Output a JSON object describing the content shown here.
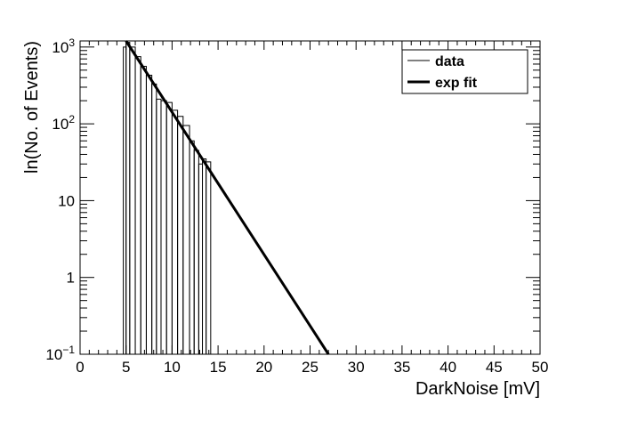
{
  "chart_data": {
    "type": "line",
    "xlabel": "DarkNoise [mV]",
    "ylabel": "ln(No. of Events)",
    "xlim": [
      0,
      50
    ],
    "ylim": [
      0.1,
      1200
    ],
    "y_scale": "log",
    "grid": false,
    "legend_position": "top-right",
    "x_ticks": [
      0,
      5,
      10,
      15,
      20,
      25,
      30,
      35,
      40,
      45,
      50
    ],
    "x_tick_labels": [
      "0",
      "5",
      "10",
      "15",
      "20",
      "25",
      "30",
      "35",
      "40",
      "45",
      "50"
    ],
    "y_ticks": [
      0.1,
      1,
      10,
      100,
      1000
    ],
    "y_tick_labels": [
      {
        "base": "10",
        "exp": "−1"
      },
      {
        "base": "1",
        "exp": ""
      },
      {
        "base": "10",
        "exp": ""
      },
      {
        "base": "10",
        "exp": "2"
      },
      {
        "base": "10",
        "exp": "3"
      }
    ],
    "series": [
      {
        "name": "data",
        "style": "histogram",
        "line_width": "thin",
        "bins": [
          {
            "x0": 4.7,
            "x1": 5.0,
            "y": 1000
          },
          {
            "x0": 5.0,
            "x1": 5.4,
            "y": 1150
          },
          {
            "x0": 5.4,
            "x1": 6.0,
            "y": 1000
          },
          {
            "x0": 6.0,
            "x1": 6.6,
            "y": 750
          },
          {
            "x0": 6.6,
            "x1": 7.2,
            "y": 560
          },
          {
            "x0": 7.2,
            "x1": 7.8,
            "y": 430
          },
          {
            "x0": 7.8,
            "x1": 8.3,
            "y": 330
          },
          {
            "x0": 8.3,
            "x1": 8.8,
            "y": 210
          },
          {
            "x0": 8.8,
            "x1": 9.4,
            "y": 200
          },
          {
            "x0": 9.4,
            "x1": 10.0,
            "y": 190
          },
          {
            "x0": 10.0,
            "x1": 10.6,
            "y": 150
          },
          {
            "x0": 10.6,
            "x1": 11.2,
            "y": 125
          },
          {
            "x0": 11.2,
            "x1": 11.9,
            "y": 95
          },
          {
            "x0": 11.9,
            "x1": 12.4,
            "y": 60
          },
          {
            "x0": 12.4,
            "x1": 12.9,
            "y": 45
          },
          {
            "x0": 12.9,
            "x1": 13.3,
            "y": 30
          },
          {
            "x0": 13.3,
            "x1": 13.7,
            "y": 35
          },
          {
            "x0": 13.7,
            "x1": 14.2,
            "y": 32
          }
        ]
      },
      {
        "name": "exp fit",
        "style": "line",
        "line_width": "thick",
        "x": [
          5.0,
          27.0
        ],
        "y": [
          1200,
          0.1
        ]
      }
    ],
    "colors": {
      "data": "#000000",
      "exp fit": "#000000"
    }
  }
}
